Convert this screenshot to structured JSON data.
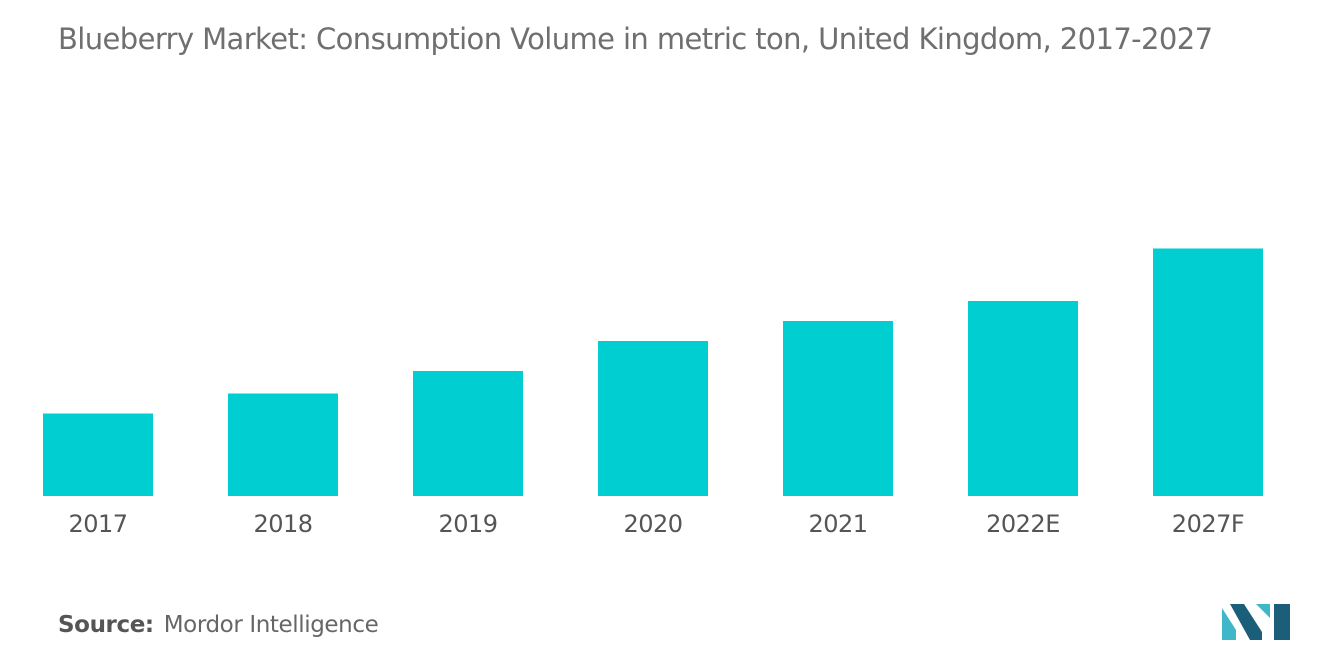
{
  "title": "Blueberry Market: Consumption Volume in metric ton, United Kingdom, 2017-2027",
  "source": {
    "label": "Source:",
    "value": "Mordor Intelligence"
  },
  "colors": {
    "bar": "#00CED1",
    "logo_light": "#3FB7C9",
    "logo_dark": "#1B5E7A"
  },
  "logo": {
    "icon": "mordor-intelligence-logo-icon"
  },
  "chart_data": {
    "type": "bar",
    "title": "Blueberry Market: Consumption Volume in metric ton, United Kingdom, 2017-2027",
    "xlabel": "",
    "ylabel": "",
    "categories": [
      "2017",
      "2018",
      "2019",
      "2020",
      "2021",
      "2022E",
      "2027F"
    ],
    "values": [
      33,
      41,
      50,
      62,
      70,
      78,
      99
    ],
    "ylim": [
      0,
      100
    ],
    "grid": false,
    "legend": "none",
    "value_note": "Relative bar heights; the chart shows no numeric axis."
  }
}
